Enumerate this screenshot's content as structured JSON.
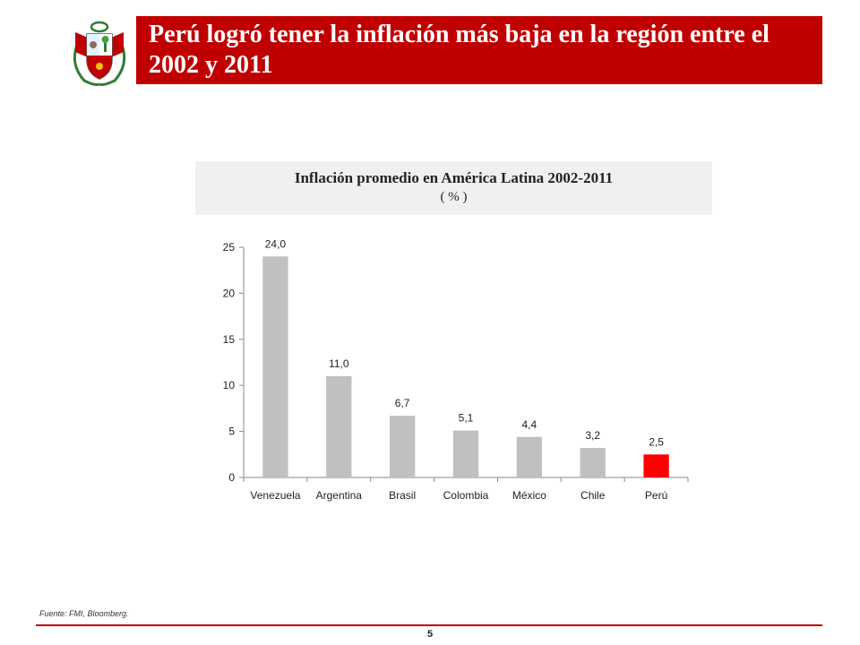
{
  "header": {
    "title": "Perú logró tener la inflación más baja en la región entre el 2002 y 2011",
    "bar_color": "#c00000",
    "logo_icon": "peru-coat-of-arms-icon"
  },
  "chart_data": {
    "type": "bar",
    "title": "Inflación promedio en América Latina 2002-2011",
    "subtitle": "( % )",
    "categories": [
      "Venezuela",
      "Argentina",
      "Brasil",
      "Colombia",
      "México",
      "Chile",
      "Perú"
    ],
    "values": [
      24.0,
      11.0,
      6.7,
      5.1,
      4.4,
      3.2,
      2.5
    ],
    "value_labels": [
      "24,0",
      "11,0",
      "6,7",
      "5,1",
      "4,4",
      "3,2",
      "2,5"
    ],
    "ylim": [
      0,
      25
    ],
    "yticks": [
      0,
      5,
      10,
      15,
      20,
      25
    ],
    "grid": false,
    "bar_color": "#c0c0c0",
    "highlight_category": "Perú",
    "highlight_color": "#ff0000"
  },
  "footer": {
    "source": "Fuente: FMI, Bloomberg.",
    "page_number": "5",
    "line_color": "#c00000"
  }
}
